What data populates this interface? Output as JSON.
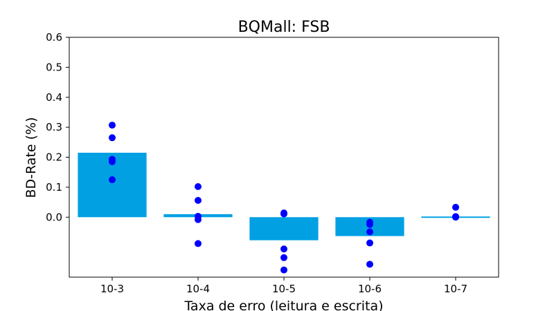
{
  "chart_data": {
    "type": "bar",
    "title": "BQMall: FSB",
    "xlabel": "Taxa de erro (leitura e escrita)",
    "ylabel": "BD-Rate (%)",
    "categories": [
      "10-3",
      "10-4",
      "10-5",
      "10-6",
      "10-7"
    ],
    "values": [
      0.215,
      0.01,
      -0.077,
      -0.063,
      0.003
    ],
    "points": [
      [
        0.307,
        0.265,
        0.193,
        0.185,
        0.125
      ],
      [
        0.102,
        0.056,
        0.003,
        -0.008,
        -0.088
      ],
      [
        0.014,
        0.011,
        -0.106,
        -0.135,
        -0.176
      ],
      [
        -0.017,
        -0.024,
        -0.049,
        -0.086,
        -0.157
      ],
      [
        0.033,
        0.002,
        0.0,
        0.001
      ]
    ],
    "ylim": [
      -0.2,
      0.6
    ],
    "yticks": [
      "0.0",
      "0.1",
      "0.2",
      "0.3",
      "0.4",
      "0.5",
      "0.6"
    ],
    "bar_color": "#00a0e3",
    "point_color": "#0000ff",
    "grid": false
  }
}
